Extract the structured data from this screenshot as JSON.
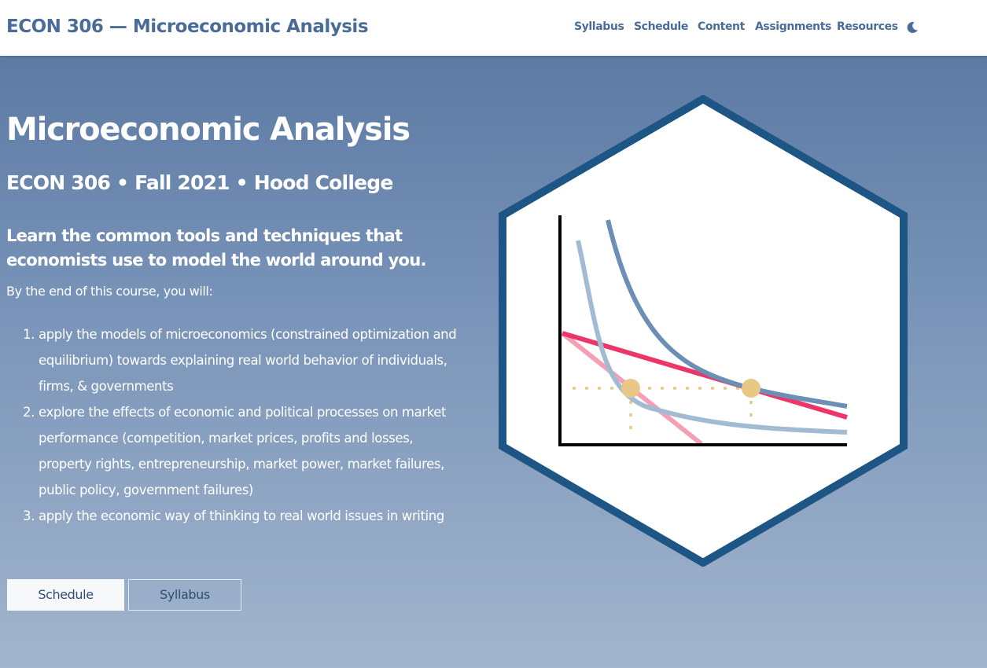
{
  "navbar": {
    "brand": "ECON 306 — Microeconomic Analysis",
    "links": [
      {
        "label": "Syllabus"
      },
      {
        "label": "Schedule"
      },
      {
        "label": "Content"
      },
      {
        "label": "Assignments"
      },
      {
        "label": "Resources"
      }
    ],
    "theme_toggle_icon": "moon-icon"
  },
  "hero": {
    "title": "Microeconomic Analysis",
    "subtitle": "ECON 306 • Fall 2021 • Hood College",
    "tagline": "Learn the common tools and techniques that economists use to model the world around you.",
    "intro": "By the end of this course, you will:",
    "goals": [
      {
        "number": "1.",
        "text": "apply the models of microeconomics (constrained optimization and equilibrium) towards explaining real world behavior of individuals, firms, & governments"
      },
      {
        "number": "2.",
        "text": "explore the effects of economic and political processes on market performance (competition, market prices, profits and losses, property rights, entrepreneurship, market power, market failures, public policy, government failures)"
      },
      {
        "number": "3.",
        "text": "apply the economic way of thinking to real world issues in writing"
      }
    ],
    "buttons": {
      "primary": "Schedule",
      "secondary": "Syllabus"
    }
  },
  "colors": {
    "brand": "#4a6c99",
    "hex_border": "#1d5584",
    "budget_line_dark": "#ec3669",
    "budget_line_light": "#f59fb6",
    "curve_dark": "#6b8fb5",
    "curve_light": "#a3bbd2",
    "tangency_point": "#e9c887"
  },
  "logo_icon": "indifference-curve-hex-logo"
}
